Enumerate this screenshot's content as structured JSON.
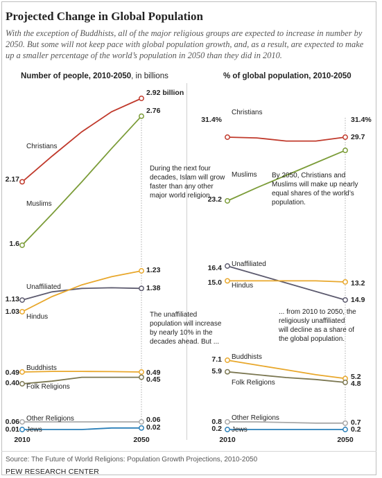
{
  "header": {
    "title": "Projected Change in Global Population",
    "subtitle": "With the exception of Buddhists, all of the major religious groups are expected to increase in number by 2050. But some will not keep pace with global population growth, and, as a result, are expected to make up a smaller percentage of the world’s population in 2050 than they did in 2010."
  },
  "footer": {
    "source": "Source: The Future of World Religions: Population Growth Projections, 2010-2050",
    "org": "PEW RESEARCH CENTER"
  },
  "colors": {
    "Christians": "#c0392b",
    "Muslims": "#7b9c38",
    "Hindus": "#e8a72b",
    "Unaffiliated": "#5c5a6e",
    "Buddhists": "#e8a72b",
    "Folk Religions": "#7a7650",
    "Other Religions": "#a8a8a8",
    "Jews": "#2a7fb8"
  },
  "chart_data": [
    {
      "type": "line",
      "title": "Number of people, 2010-2050",
      "title_suffix": ", in billions",
      "x": [
        2010,
        2050
      ],
      "x_tick_labels": [
        "2010",
        "2050"
      ],
      "groups": [
        {
          "ylim": [
            1.6,
            2.92
          ],
          "series": [
            {
              "name": "Christians",
              "values": [
                2.17,
                2.92
              ],
              "start_label": "2.17",
              "end_label": "2.92 billion",
              "path": [
                2.17,
                2.4,
                2.62,
                2.8,
                2.92
              ]
            },
            {
              "name": "Muslims",
              "values": [
                1.6,
                2.76
              ],
              "start_label": "1.6",
              "end_label": "2.76",
              "path": [
                1.6,
                1.88,
                2.17,
                2.47,
                2.76
              ]
            }
          ],
          "annotation": "During the next four decades, Islam will grow faster than any other major world religion."
        },
        {
          "ylim": [
            1.03,
            1.38
          ],
          "series": [
            {
              "name": "Unaffiliated",
              "values": [
                1.13,
                1.23
              ],
              "start_label": "1.13",
              "end_label": "1.23",
              "path": [
                1.13,
                1.2,
                1.23,
                1.235,
                1.23
              ]
            },
            {
              "name": "Hindus",
              "values": [
                1.03,
                1.38
              ],
              "start_label": "1.03",
              "end_label": "1.38",
              "path": [
                1.03,
                1.16,
                1.26,
                1.33,
                1.38
              ]
            }
          ],
          "annotation": "The unaffiliated population will increase by nearly 10% in the decades ahead. But ..."
        },
        {
          "ylim": [
            0.4,
            0.49
          ],
          "series": [
            {
              "name": "Buddhists",
              "values": [
                0.49,
                0.49
              ],
              "start_label": "0.49",
              "end_label": "0.49",
              "path": [
                0.49,
                0.495,
                0.495,
                0.493,
                0.49
              ]
            },
            {
              "name": "Folk Religions",
              "values": [
                0.4,
                0.45
              ],
              "start_label": "0.40",
              "end_label": "0.45",
              "path": [
                0.4,
                0.42,
                0.45,
                0.45,
                0.45
              ]
            }
          ]
        },
        {
          "ylim": [
            0.01,
            0.06
          ],
          "series": [
            {
              "name": "Other Religions",
              "values": [
                0.06,
                0.06
              ],
              "start_label": "0.06",
              "end_label": "0.06",
              "path": [
                0.06,
                0.06,
                0.06,
                0.06,
                0.06
              ]
            },
            {
              "name": "Jews",
              "values": [
                0.01,
                0.02
              ],
              "start_label": "0.01",
              "end_label": "0.02",
              "path": [
                0.01,
                0.01,
                0.01,
                0.02,
                0.02
              ]
            }
          ]
        }
      ]
    },
    {
      "type": "line",
      "title": "% of global population, 2010-2050",
      "x": [
        2010,
        2050
      ],
      "x_tick_labels": [
        "2010",
        "2050"
      ],
      "groups": [
        {
          "ylim": [
            23.2,
            31.4
          ],
          "series": [
            {
              "name": "Christians",
              "values": [
                31.4,
                31.4
              ],
              "start_label": "31.4%",
              "end_label": "31.4%",
              "path": [
                31.4,
                31.3,
                30.9,
                30.9,
                31.4
              ]
            },
            {
              "name": "Muslims",
              "values": [
                23.2,
                29.7
              ],
              "start_label": "23.2",
              "end_label": "29.7",
              "path": [
                23.2,
                24.9,
                26.5,
                28.1,
                29.7
              ]
            }
          ],
          "annotation": "By 2050, Christians and Muslims will make up nearly equal shares of the world’s population."
        },
        {
          "ylim": [
            13.2,
            16.4
          ],
          "series": [
            {
              "name": "Unaffiliated",
              "values": [
                16.4,
                13.2
              ],
              "start_label": "16.4",
              "end_label": "13.2",
              "path": [
                16.4,
                15.6,
                14.8,
                14.0,
                13.2
              ]
            },
            {
              "name": "Hindus",
              "values": [
                15.0,
                14.9
              ],
              "start_label": "15.0",
              "end_label": "14.9",
              "path": [
                15.0,
                15.0,
                15.0,
                15.0,
                14.9
              ]
            }
          ],
          "annotation": "... from 2010 to 2050, the religiously unaffiliated will decline as a share of the global population."
        },
        {
          "ylim": [
            4.8,
            7.1
          ],
          "series": [
            {
              "name": "Buddhists",
              "values": [
                7.1,
                5.2
              ],
              "start_label": "7.1",
              "end_label": "5.2",
              "path": [
                7.1,
                6.6,
                6.1,
                5.6,
                5.2
              ]
            },
            {
              "name": "Folk Religions",
              "values": [
                5.9,
                4.8
              ],
              "start_label": "5.9",
              "end_label": "4.8",
              "path": [
                5.9,
                5.6,
                5.3,
                5.1,
                4.8
              ]
            }
          ]
        },
        {
          "ylim": [
            0.2,
            0.8
          ],
          "series": [
            {
              "name": "Other Religions",
              "values": [
                0.8,
                0.7
              ],
              "start_label": "0.8",
              "end_label": "0.7",
              "path": [
                0.8,
                0.8,
                0.75,
                0.7,
                0.7
              ]
            },
            {
              "name": "Jews",
              "values": [
                0.2,
                0.2
              ],
              "start_label": "0.2",
              "end_label": "0.2",
              "path": [
                0.2,
                0.2,
                0.2,
                0.2,
                0.2
              ]
            }
          ]
        }
      ]
    }
  ]
}
